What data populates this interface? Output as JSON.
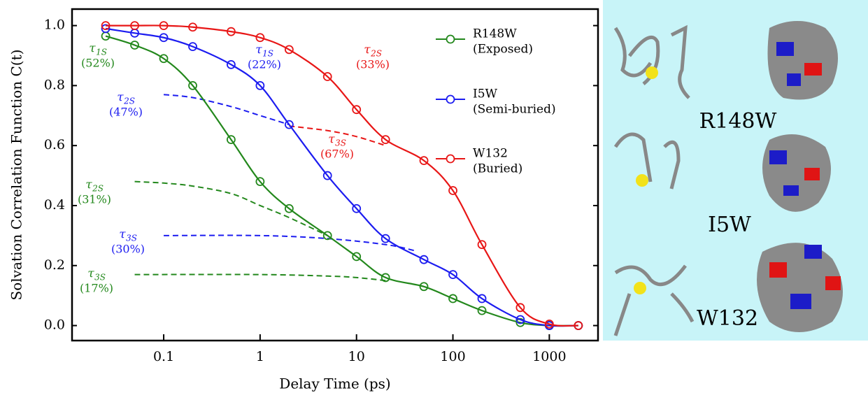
{
  "chart_data": {
    "type": "line",
    "x_label": "Delay Time (ps)",
    "y_label": "Solvation Correlation Function C(t)",
    "log_x": true,
    "xlim": [
      0.0112,
      3200
    ],
    "ylim": [
      -0.05,
      1.055
    ],
    "xticks": [
      0.1,
      1,
      10,
      100,
      1000
    ],
    "yticks": [
      {
        "value": 0,
        "label": "0.0"
      },
      0.2,
      0.4,
      0.6,
      0.8,
      {
        "value": 1,
        "label": "1.0"
      }
    ],
    "x": [
      0.025,
      0.05,
      0.1,
      0.2,
      0.5,
      1,
      2,
      5,
      10,
      20,
      50,
      100,
      200,
      500,
      1000,
      2000
    ],
    "series": [
      {
        "name": "R148W",
        "description": "(Exposed)",
        "color": "#23881c",
        "values": [
          0.965,
          0.935,
          0.89,
          0.8,
          0.62,
          0.48,
          0.39,
          0.3,
          0.23,
          0.16,
          0.13,
          0.09,
          0.05,
          0.01,
          0.0,
          0.0
        ]
      },
      {
        "name": "I5W",
        "description": "(Semi-buried)",
        "color": "#1c1cf0",
        "values": [
          0.99,
          0.975,
          0.96,
          0.93,
          0.87,
          0.8,
          0.67,
          0.5,
          0.39,
          0.29,
          0.22,
          0.17,
          0.09,
          0.02,
          0.0,
          0.0
        ]
      },
      {
        "name": "W132",
        "description": "(Buried)",
        "color": "#e81616",
        "values": [
          1.0,
          1.0,
          1.0,
          0.995,
          0.98,
          0.96,
          0.92,
          0.83,
          0.72,
          0.62,
          0.55,
          0.45,
          0.27,
          0.06,
          0.005,
          0.0
        ]
      }
    ],
    "components": [
      {
        "color": "#1c1cf0",
        "x": [
          0.1,
          0.2,
          0.5,
          1,
          2
        ],
        "values": [
          0.77,
          0.76,
          0.73,
          0.7,
          0.67
        ]
      },
      {
        "color": "#e81616",
        "x": [
          2,
          5,
          10,
          20
        ],
        "values": [
          0.665,
          0.65,
          0.63,
          0.6
        ]
      },
      {
        "color": "#23881c",
        "x": [
          0.05,
          0.1,
          0.2,
          0.5,
          1,
          2,
          5
        ],
        "values": [
          0.48,
          0.475,
          0.465,
          0.44,
          0.4,
          0.36,
          0.3
        ]
      },
      {
        "color": "#1c1cf0",
        "x": [
          0.1,
          1,
          5,
          20,
          40
        ],
        "values": [
          0.3,
          0.3,
          0.29,
          0.27,
          0.25
        ]
      },
      {
        "color": "#23881c",
        "x": [
          0.05,
          1,
          5,
          10,
          20
        ],
        "values": [
          0.17,
          0.17,
          0.165,
          0.16,
          0.15
        ]
      }
    ],
    "annotations": [
      {
        "symbol": "τ",
        "subscript": "1S",
        "text": "(52%)",
        "color": "#23881c"
      },
      {
        "symbol": "τ",
        "subscript": "1S",
        "text": "(22%)",
        "color": "#1c1cf0"
      },
      {
        "symbol": "τ",
        "subscript": "2S",
        "text": "(33%)",
        "color": "#e81616"
      },
      {
        "symbol": "τ",
        "subscript": "2S",
        "text": "(47%)",
        "color": "#1c1cf0"
      },
      {
        "symbol": "τ",
        "subscript": "3S",
        "text": "(67%)",
        "color": "#e81616"
      },
      {
        "symbol": "τ",
        "subscript": "2S",
        "text": "(31%)",
        "color": "#23881c"
      },
      {
        "symbol": "τ",
        "subscript": "3S",
        "text": "(30%)",
        "color": "#1c1cf0"
      },
      {
        "symbol": "τ",
        "subscript": "3S",
        "text": "(17%)",
        "color": "#23881c"
      }
    ]
  },
  "structure_labels": [
    "R148W",
    "I5W",
    "W132"
  ]
}
